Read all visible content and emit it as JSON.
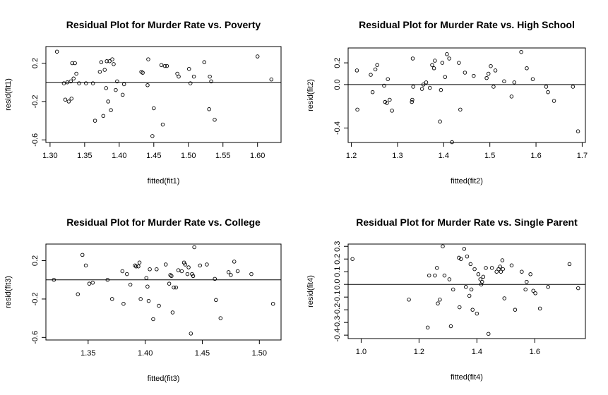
{
  "chart_data": [
    {
      "type": "scatter",
      "title": "Residual Plot for Murder Rate vs. Poverty",
      "xlabel": "fitted(fit1)",
      "ylabel": "resid(fit1)",
      "xlim": [
        1.294,
        1.634
      ],
      "ylim": [
        -0.627,
        0.373
      ],
      "xticks": [
        1.3,
        1.35,
        1.4,
        1.45,
        1.5,
        1.55,
        1.6
      ],
      "xtick_labels": [
        "1.30",
        "1.35",
        "1.40",
        "1.45",
        "1.50",
        "1.55",
        "1.60"
      ],
      "yticks": [
        -0.6,
        -0.2,
        0.2
      ],
      "ytick_labels": [
        "-0.6",
        "-0.2",
        "0.2"
      ],
      "hline": 0,
      "x": [
        1.31,
        1.32,
        1.322,
        1.325,
        1.327,
        1.33,
        1.331,
        1.332,
        1.334,
        1.336,
        1.338,
        1.342,
        1.352,
        1.362,
        1.365,
        1.372,
        1.374,
        1.377,
        1.379,
        1.381,
        1.382,
        1.384,
        1.386,
        1.388,
        1.39,
        1.392,
        1.395,
        1.397,
        1.405,
        1.407,
        1.432,
        1.434,
        1.441,
        1.442,
        1.448,
        1.45,
        1.461,
        1.463,
        1.466,
        1.469,
        1.484,
        1.486,
        1.501,
        1.503,
        1.508,
        1.523,
        1.53,
        1.531,
        1.533,
        1.538,
        1.6,
        1.62
      ],
      "y": [
        0.32,
        -0.01,
        -0.18,
        0.0,
        -0.2,
        0.01,
        -0.17,
        0.2,
        0.04,
        0.2,
        0.09,
        -0.01,
        -0.01,
        -0.01,
        -0.4,
        0.11,
        0.21,
        -0.35,
        0.13,
        -0.06,
        0.22,
        -0.2,
        0.22,
        -0.29,
        0.24,
        0.19,
        -0.08,
        0.01,
        -0.13,
        -0.02,
        0.11,
        0.1,
        -0.03,
        0.24,
        -0.56,
        -0.27,
        0.18,
        -0.44,
        0.17,
        0.17,
        0.09,
        0.06,
        0.14,
        -0.01,
        0.06,
        0.21,
        -0.28,
        0.06,
        0.01,
        -0.39,
        0.27,
        0.03
      ]
    },
    {
      "type": "scatter",
      "title": "Residual Plot for Murder Rate vs. High School",
      "xlabel": "fitted(fit2)",
      "ylabel": "resid(fit2)",
      "xlim": [
        1.193,
        1.707
      ],
      "ylim": [
        -0.533,
        0.337
      ],
      "xticks": [
        1.2,
        1.3,
        1.4,
        1.5,
        1.6,
        1.7
      ],
      "xtick_labels": [
        "1.2",
        "1.3",
        "1.4",
        "1.5",
        "1.6",
        "1.7"
      ],
      "yticks": [
        -0.4,
        0.0,
        0.2
      ],
      "ytick_labels": [
        "-0.4",
        "0.0",
        "0.2"
      ],
      "hline": 0,
      "x": [
        1.212,
        1.213,
        1.242,
        1.246,
        1.252,
        1.256,
        1.271,
        1.273,
        1.277,
        1.279,
        1.283,
        1.288,
        1.331,
        1.332,
        1.333,
        1.334,
        1.353,
        1.356,
        1.362,
        1.37,
        1.375,
        1.379,
        1.381,
        1.392,
        1.394,
        1.397,
        1.403,
        1.407,
        1.412,
        1.418,
        1.433,
        1.436,
        1.446,
        1.465,
        1.493,
        1.497,
        1.502,
        1.508,
        1.512,
        1.531,
        1.547,
        1.553,
        1.568,
        1.58,
        1.593,
        1.622,
        1.626,
        1.639,
        1.68,
        1.691
      ],
      "y": [
        0.13,
        -0.23,
        0.09,
        -0.07,
        0.14,
        0.18,
        -0.01,
        -0.16,
        -0.17,
        0.05,
        -0.14,
        -0.24,
        -0.16,
        -0.14,
        0.24,
        -0.02,
        -0.04,
        0.0,
        0.02,
        -0.03,
        0.18,
        0.15,
        0.22,
        -0.34,
        -0.05,
        0.2,
        0.07,
        0.28,
        0.24,
        -0.53,
        0.2,
        -0.23,
        0.11,
        0.08,
        0.06,
        0.1,
        0.17,
        -0.02,
        0.13,
        0.03,
        -0.11,
        0.02,
        0.3,
        0.15,
        0.05,
        -0.02,
        -0.07,
        -0.15,
        -0.02,
        -0.43
      ]
    },
    {
      "type": "scatter",
      "title": "Residual Plot for Murder Rate vs. College",
      "xlabel": "fitted(fit3)",
      "ylabel": "resid(fit3)",
      "xlim": [
        1.313,
        1.519
      ],
      "ylim": [
        -0.627,
        0.373
      ],
      "xticks": [
        1.35,
        1.4,
        1.45,
        1.5
      ],
      "xtick_labels": [
        "1.35",
        "1.40",
        "1.45",
        "1.50"
      ],
      "yticks": [
        -0.6,
        -0.2,
        0.2
      ],
      "ytick_labels": [
        "-0.6",
        "-0.2",
        "0.2"
      ],
      "hline": 0,
      "x": [
        1.32,
        1.341,
        1.345,
        1.348,
        1.351,
        1.354,
        1.367,
        1.371,
        1.38,
        1.381,
        1.384,
        1.387,
        1.391,
        1.392,
        1.394,
        1.395,
        1.396,
        1.401,
        1.402,
        1.403,
        1.404,
        1.407,
        1.41,
        1.412,
        1.418,
        1.421,
        1.422,
        1.423,
        1.424,
        1.425,
        1.427,
        1.429,
        1.432,
        1.434,
        1.435,
        1.437,
        1.438,
        1.44,
        1.441,
        1.442,
        1.443,
        1.448,
        1.454,
        1.461,
        1.462,
        1.466,
        1.473,
        1.475,
        1.478,
        1.481,
        1.493,
        1.512
      ],
      "y": [
        0.0,
        -0.15,
        0.26,
        0.15,
        -0.04,
        -0.03,
        0.0,
        -0.2,
        0.09,
        -0.25,
        0.06,
        -0.05,
        0.15,
        0.14,
        0.14,
        0.18,
        -0.2,
        0.02,
        -0.07,
        -0.22,
        0.11,
        -0.41,
        0.11,
        -0.27,
        0.16,
        -0.04,
        0.05,
        0.04,
        -0.34,
        -0.08,
        -0.08,
        0.1,
        0.09,
        0.18,
        0.16,
        0.06,
        0.13,
        -0.56,
        0.06,
        0.04,
        0.34,
        0.15,
        0.16,
        0.01,
        -0.21,
        -0.4,
        0.08,
        0.05,
        0.19,
        0.09,
        0.06,
        -0.25
      ]
    },
    {
      "type": "scatter",
      "title": "Residual Plot for Murder Rate vs. Single Parent",
      "xlabel": "fitted(fit4)",
      "ylabel": "resid(fit4)",
      "xlim": [
        0.955,
        1.775
      ],
      "ylim": [
        -0.427,
        0.318
      ],
      "xticks": [
        1.0,
        1.2,
        1.4,
        1.6
      ],
      "xtick_labels": [
        "1.0",
        "1.2",
        "1.4",
        "1.6"
      ],
      "yticks": [
        -0.4,
        -0.3,
        -0.2,
        -0.1,
        0.0,
        0.1,
        0.2,
        0.3
      ],
      "ytick_labels": [
        "-0.4",
        "-0.3",
        "-0.2",
        "-0.1",
        "0.0",
        "0.1",
        "0.2",
        "0.3"
      ],
      "hline": 0,
      "x": [
        0.97,
        1.165,
        1.23,
        1.235,
        1.255,
        1.262,
        1.265,
        1.272,
        1.282,
        1.288,
        1.305,
        1.31,
        1.318,
        1.338,
        1.34,
        1.345,
        1.356,
        1.362,
        1.366,
        1.374,
        1.378,
        1.381,
        1.385,
        1.392,
        1.4,
        1.405,
        1.412,
        1.415,
        1.418,
        1.422,
        1.431,
        1.44,
        1.452,
        1.468,
        1.475,
        1.48,
        1.483,
        1.488,
        1.49,
        1.495,
        1.52,
        1.532,
        1.555,
        1.568,
        1.572,
        1.585,
        1.595,
        1.602,
        1.618,
        1.646,
        1.72,
        1.75
      ],
      "y": [
        0.2,
        -0.12,
        -0.34,
        0.07,
        0.07,
        0.13,
        -0.15,
        -0.12,
        0.3,
        0.07,
        0.04,
        -0.33,
        -0.04,
        0.21,
        -0.18,
        0.2,
        0.28,
        -0.02,
        0.22,
        -0.09,
        0.16,
        -0.04,
        -0.2,
        0.12,
        -0.23,
        0.08,
        0.04,
        0.0,
        0.02,
        0.06,
        0.13,
        -0.39,
        0.13,
        0.1,
        0.12,
        0.14,
        0.1,
        0.19,
        0.12,
        -0.11,
        0.15,
        -0.2,
        0.1,
        -0.04,
        0.02,
        0.08,
        -0.05,
        -0.07,
        -0.19,
        -0.02,
        0.16,
        -0.03
      ]
    }
  ]
}
